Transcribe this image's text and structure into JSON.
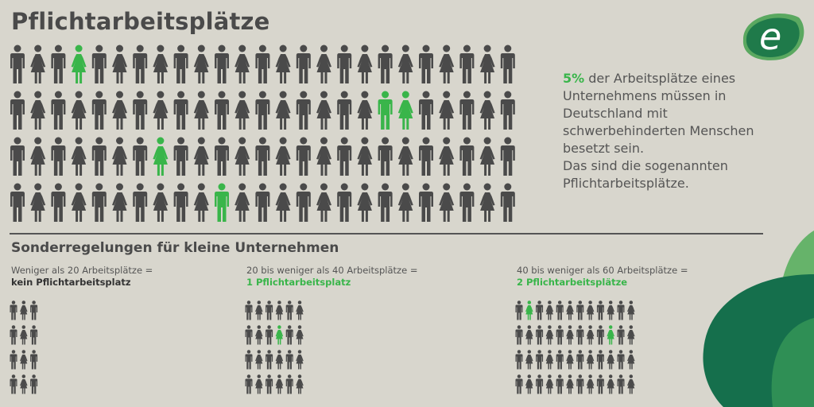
{
  "title": "Pflichtarbeitsplätze",
  "colors": {
    "background": "#d8d6cd",
    "figure": "#4a4a4a",
    "highlight": "#39b54a",
    "text": "#555555"
  },
  "logo": {
    "icon": "e-letter-logo",
    "letter": "e"
  },
  "main_grid": {
    "rows": 4,
    "cols": 25,
    "pattern": "male-female-alternating",
    "highlighted": [
      [
        0,
        3
      ],
      [
        1,
        18
      ],
      [
        1,
        19
      ],
      [
        2,
        7
      ],
      [
        3,
        10
      ]
    ]
  },
  "side_text": {
    "highlight": "5%",
    "lines": [
      " der Arbeitsplätze eines",
      "Unternehmens müssen in",
      "Deutschland mit",
      "schwerbehinderten Menschen",
      "besetzt sein.",
      "Das sind die sogenannten",
      "Pflichtarbeitsplätze."
    ]
  },
  "subtitle": "Sonderregelungen für kleine Unternehmen",
  "columns": [
    {
      "label": "Weniger als 20 Arbeitsplätze =",
      "result": "kein Pflichtarbeitsplatz",
      "result_green": false,
      "rows": 4,
      "cols": 3,
      "highlighted": []
    },
    {
      "label": "20 bis weniger als 40 Arbeitsplätze =",
      "result": "1 Pflichtarbeitsplatz",
      "result_green": true,
      "rows": 4,
      "cols": 6,
      "highlighted": [
        [
          1,
          3
        ]
      ]
    },
    {
      "label": "40 bis weniger als 60 Arbeitsplätze =",
      "result": "2 Pflichtarbeitsplätze",
      "result_green": true,
      "rows": 4,
      "cols": 12,
      "highlighted": [
        [
          0,
          1
        ],
        [
          1,
          9
        ]
      ]
    }
  ]
}
